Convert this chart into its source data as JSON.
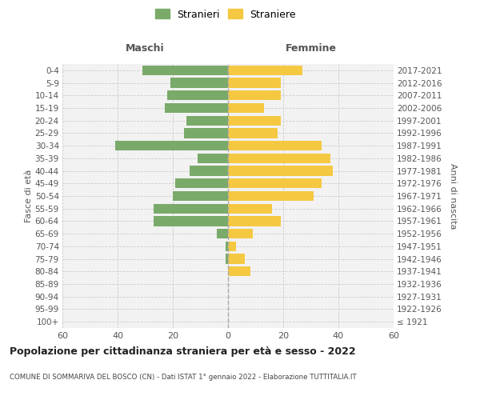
{
  "age_groups": [
    "100+",
    "95-99",
    "90-94",
    "85-89",
    "80-84",
    "75-79",
    "70-74",
    "65-69",
    "60-64",
    "55-59",
    "50-54",
    "45-49",
    "40-44",
    "35-39",
    "30-34",
    "25-29",
    "20-24",
    "15-19",
    "10-14",
    "5-9",
    "0-4"
  ],
  "birth_years": [
    "≤ 1921",
    "1922-1926",
    "1927-1931",
    "1932-1936",
    "1937-1941",
    "1942-1946",
    "1947-1951",
    "1952-1956",
    "1957-1961",
    "1962-1966",
    "1967-1971",
    "1972-1976",
    "1977-1981",
    "1982-1986",
    "1987-1991",
    "1992-1996",
    "1997-2001",
    "2002-2006",
    "2007-2011",
    "2012-2016",
    "2017-2021"
  ],
  "males": [
    0,
    0,
    0,
    0,
    0,
    1,
    1,
    4,
    27,
    27,
    20,
    19,
    14,
    11,
    41,
    16,
    15,
    23,
    22,
    21,
    31
  ],
  "females": [
    0,
    0,
    0,
    0,
    8,
    6,
    3,
    9,
    19,
    16,
    31,
    34,
    38,
    37,
    34,
    18,
    19,
    13,
    19,
    19,
    27
  ],
  "male_color": "#7aaa6a",
  "female_color": "#f5c842",
  "background_color": "#ffffff",
  "plot_bg_color": "#f2f2f2",
  "grid_color": "#cccccc",
  "title": "Popolazione per cittadinanza straniera per età e sesso - 2022",
  "subtitle": "COMUNE DI SOMMARIVA DEL BOSCO (CN) - Dati ISTAT 1° gennaio 2022 - Elaborazione TUTTITALIA.IT",
  "header_left": "Maschi",
  "header_right": "Femmine",
  "ylabel_left": "Fasce di età",
  "ylabel_right": "Anni di nascita",
  "legend_male": "Stranieri",
  "legend_female": "Straniere",
  "xlim": 60,
  "dpi": 100,
  "figsize": [
    6.0,
    5.0
  ]
}
